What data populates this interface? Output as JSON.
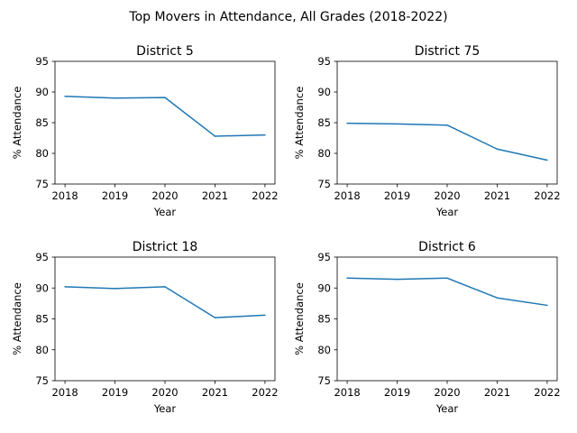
{
  "suptitle": "Top Movers in Attendance, All Grades (2018-2022)",
  "chart_data": [
    {
      "type": "line",
      "title": "District 5",
      "xlabel": "Year",
      "ylabel": "% Attendance",
      "x": [
        2018,
        2019,
        2020,
        2021,
        2022
      ],
      "series": [
        {
          "values": [
            89.3,
            89.0,
            89.1,
            82.8,
            83.0
          ]
        }
      ],
      "ylim": [
        75,
        95
      ],
      "yticks": [
        75,
        80,
        85,
        90,
        95
      ],
      "grid": false,
      "line_color": "#1f77b4"
    },
    {
      "type": "line",
      "title": "District 75",
      "xlabel": "Year",
      "ylabel": "% Attendance",
      "x": [
        2018,
        2019,
        2020,
        2021,
        2022
      ],
      "series": [
        {
          "values": [
            84.9,
            84.8,
            84.6,
            80.7,
            78.9
          ]
        }
      ],
      "ylim": [
        75,
        95
      ],
      "yticks": [
        75,
        80,
        85,
        90,
        95
      ],
      "grid": false,
      "line_color": "#1f77b4"
    },
    {
      "type": "line",
      "title": "District 18",
      "xlabel": "Year",
      "ylabel": "% Attendance",
      "x": [
        2018,
        2019,
        2020,
        2021,
        2022
      ],
      "series": [
        {
          "values": [
            90.2,
            89.9,
            90.2,
            85.2,
            85.6
          ]
        }
      ],
      "ylim": [
        75,
        95
      ],
      "yticks": [
        75,
        80,
        85,
        90,
        95
      ],
      "grid": false,
      "line_color": "#1f77b4"
    },
    {
      "type": "line",
      "title": "District 6",
      "xlabel": "Year",
      "ylabel": "% Attendance",
      "x": [
        2018,
        2019,
        2020,
        2021,
        2022
      ],
      "series": [
        {
          "values": [
            91.6,
            91.4,
            91.6,
            88.4,
            87.2
          ]
        }
      ],
      "ylim": [
        75,
        95
      ],
      "yticks": [
        75,
        80,
        85,
        90,
        95
      ],
      "grid": false,
      "line_color": "#1f77b4"
    }
  ]
}
